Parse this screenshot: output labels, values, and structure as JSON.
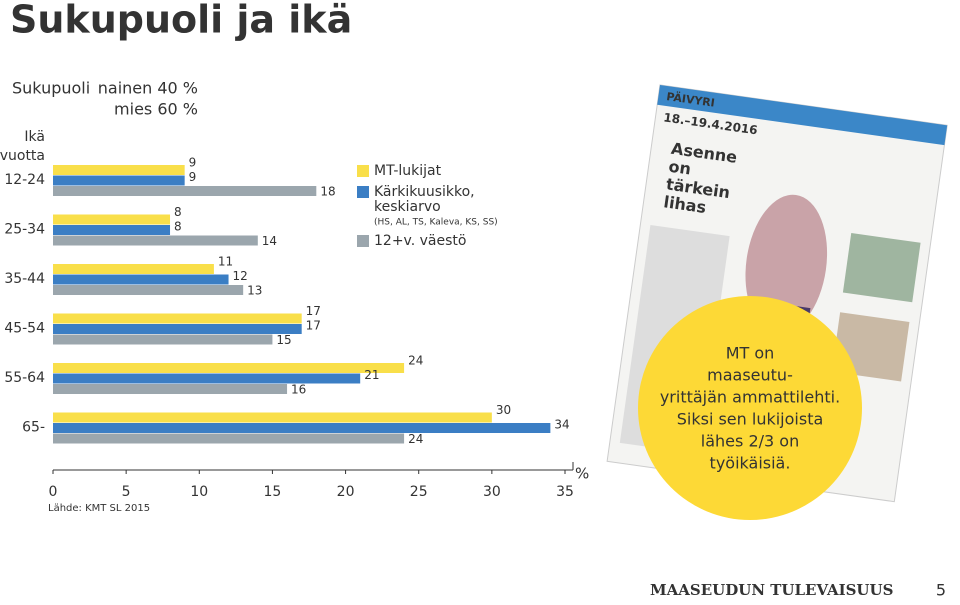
{
  "chart_data": {
    "type": "bar",
    "orientation": "horizontal",
    "title": "Sukupuoli ja ikä",
    "y_label": [
      "Ikä",
      "vuotta"
    ],
    "x_label": "%",
    "categories": [
      "12-24",
      "25-34",
      "35-44",
      "45-54",
      "55-64",
      "65-"
    ],
    "series": [
      {
        "name": "MT-lukijat",
        "color": "#f9df4a",
        "values": [
          9,
          8,
          11,
          17,
          24,
          30
        ]
      },
      {
        "name": "Kärkikuusikko, keskiarvo",
        "note": "(HS, AL, TS, Kaleva, KS, SS)",
        "color": "#3b7ec4",
        "values": [
          9,
          8,
          12,
          17,
          21,
          34
        ]
      },
      {
        "name": "12+v. väestö",
        "color": "#9ba6ad",
        "values": [
          18,
          14,
          13,
          15,
          16,
          24
        ]
      }
    ],
    "xlim": [
      0,
      35
    ],
    "xticks": [
      0,
      5,
      10,
      15,
      20,
      25,
      30,
      35
    ],
    "source": "Lähde: KMT SL 2015"
  },
  "gender": {
    "label": "Sukupuoli",
    "lines": [
      "nainen 40 %",
      "mies 60 %"
    ]
  },
  "newspaper": {
    "masthead": "PÄIVYRI",
    "date": "18.–19.4.2016",
    "headline": [
      "Asenne",
      "on",
      "tärkein",
      "lihas"
    ]
  },
  "callout": {
    "lines": [
      "MT on",
      "maaseutu-",
      "yrittäjän ammattilehti.",
      "Siksi sen lukijoista",
      "lähes 2/3 on",
      "työikäisiä."
    ]
  },
  "footer": {
    "brand": "MAASEUDUN TULEVAISUUS",
    "page": "5"
  }
}
